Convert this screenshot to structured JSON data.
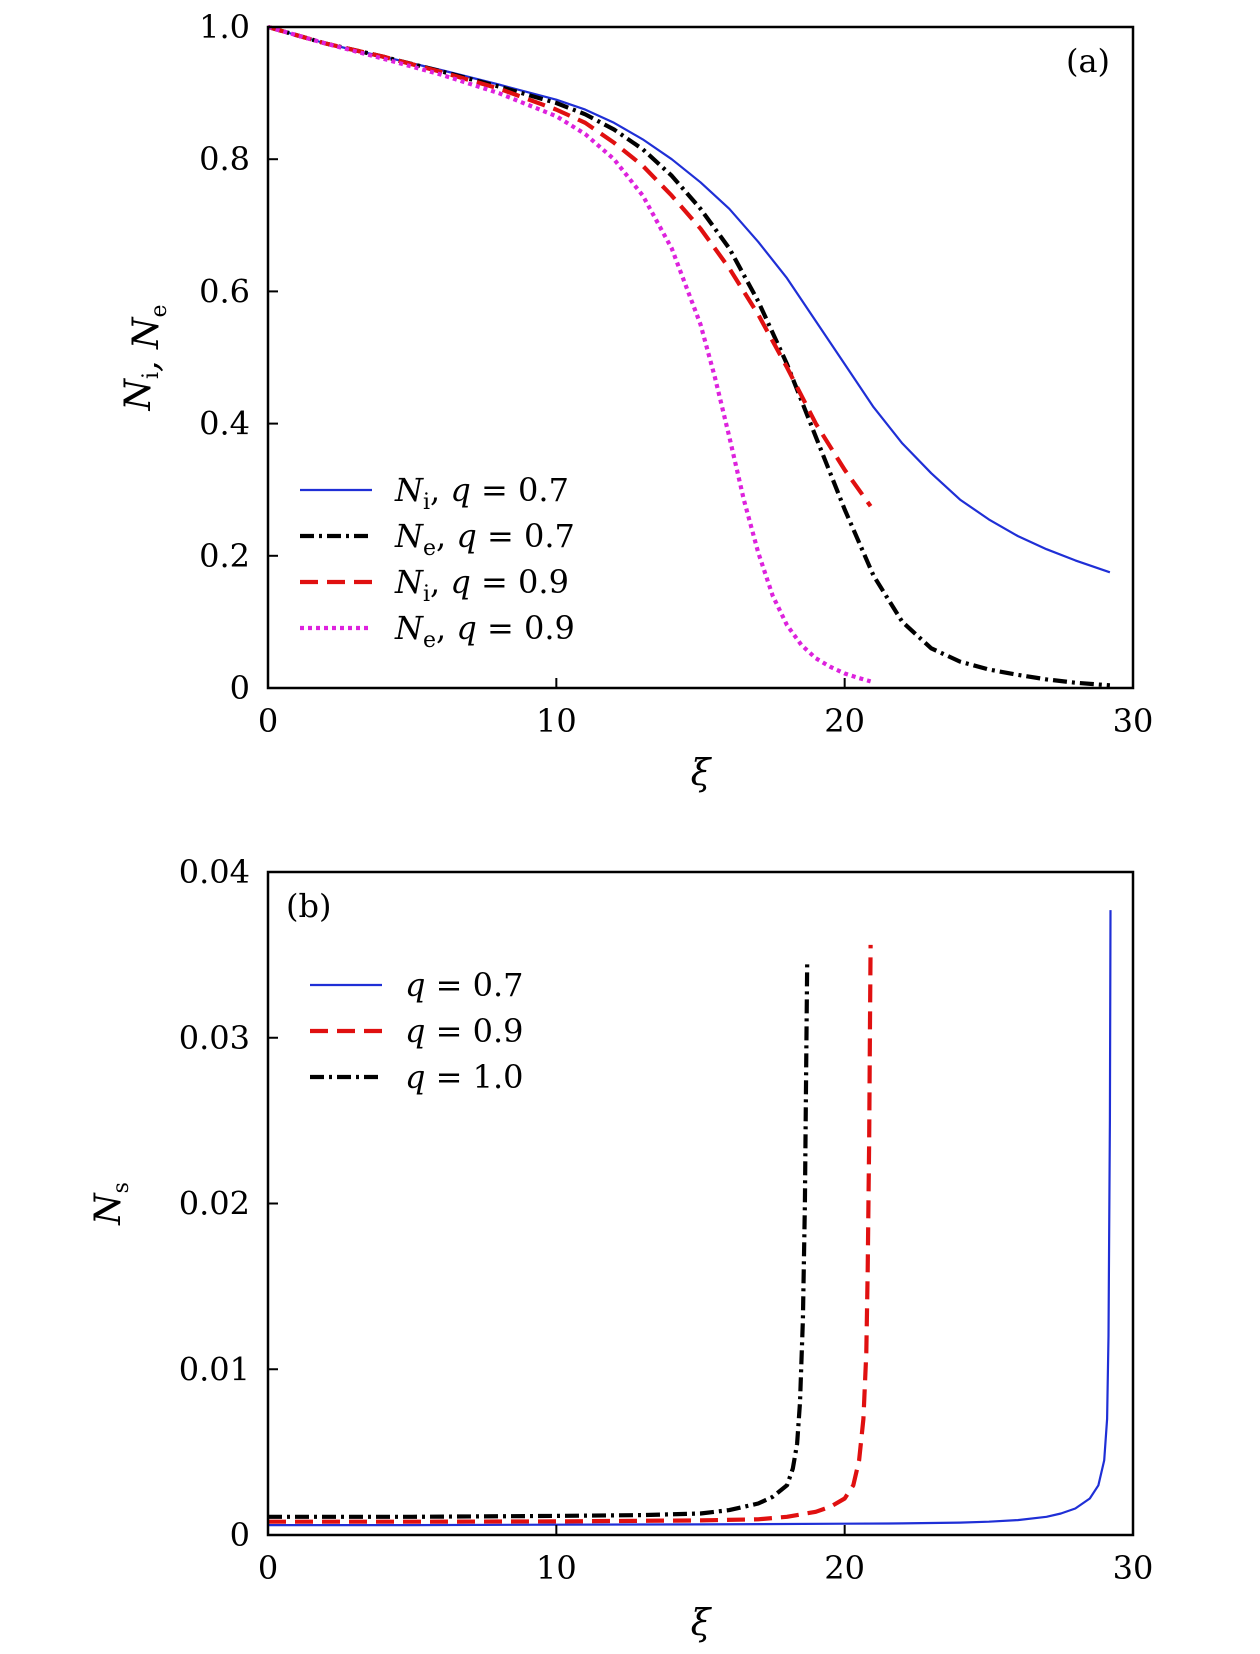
{
  "chart_data": [
    {
      "type": "line",
      "panel_label": "(a)",
      "xlabel": "ξ",
      "ylabel": "N_i, N_e",
      "xlim": [
        0,
        30
      ],
      "ylim": [
        0,
        1.0
      ],
      "xticks": [
        "0",
        "10",
        "20",
        "30"
      ],
      "yticks": [
        "0",
        "0.2",
        "0.4",
        "0.6",
        "0.8",
        "1.0"
      ],
      "legend_position": "lower-left",
      "series": [
        {
          "name": "N_i, q = 0.7",
          "legend": {
            "var": "N",
            "sub": "i",
            "rest": ", q = 0.7"
          },
          "color": "#1f2fd6",
          "style": "solid",
          "x": [
            0,
            2,
            4,
            6,
            8,
            10,
            11,
            12,
            13,
            14,
            15,
            16,
            17,
            18,
            19,
            20,
            21,
            22,
            23,
            24,
            25,
            26,
            27,
            28,
            29.2
          ],
          "y": [
            1.0,
            0.975,
            0.955,
            0.935,
            0.913,
            0.89,
            0.875,
            0.855,
            0.83,
            0.8,
            0.765,
            0.725,
            0.675,
            0.62,
            0.555,
            0.49,
            0.425,
            0.37,
            0.325,
            0.285,
            0.255,
            0.23,
            0.21,
            0.193,
            0.175
          ]
        },
        {
          "name": "N_e, q = 0.7",
          "legend": {
            "var": "N",
            "sub": "e",
            "rest": ", q = 0.7"
          },
          "color": "#000000",
          "style": "dashdot",
          "x": [
            0,
            2,
            4,
            6,
            8,
            10,
            11,
            12,
            13,
            14,
            15,
            16,
            17,
            18,
            19,
            20,
            21,
            22,
            23,
            24,
            25,
            26,
            27,
            28,
            29.2
          ],
          "y": [
            1.0,
            0.975,
            0.955,
            0.933,
            0.91,
            0.885,
            0.868,
            0.845,
            0.815,
            0.775,
            0.725,
            0.665,
            0.585,
            0.49,
            0.38,
            0.27,
            0.17,
            0.1,
            0.06,
            0.04,
            0.028,
            0.02,
            0.013,
            0.008,
            0.004
          ]
        },
        {
          "name": "N_i, q = 0.9",
          "legend": {
            "var": "N",
            "sub": "i",
            "rest": ", q = 0.9"
          },
          "color": "#e01010",
          "style": "dashed",
          "x": [
            0,
            2,
            4,
            6,
            8,
            10,
            11,
            12,
            13,
            14,
            15,
            16,
            17,
            18,
            19,
            20,
            20.9
          ],
          "y": [
            1.0,
            0.975,
            0.955,
            0.932,
            0.907,
            0.875,
            0.855,
            0.825,
            0.79,
            0.745,
            0.695,
            0.635,
            0.565,
            0.485,
            0.4,
            0.33,
            0.275
          ]
        },
        {
          "name": "N_e, q = 0.9",
          "legend": {
            "var": "N",
            "sub": "e",
            "rest": ", q = 0.9"
          },
          "color": "#dd22dd",
          "style": "dotted",
          "x": [
            0,
            2,
            4,
            6,
            8,
            10,
            11,
            12,
            13,
            14,
            15,
            15.5,
            16,
            16.5,
            17,
            17.5,
            18,
            18.5,
            19,
            19.5,
            20,
            20.5,
            20.9
          ],
          "y": [
            1.0,
            0.975,
            0.952,
            0.928,
            0.9,
            0.865,
            0.838,
            0.8,
            0.745,
            0.665,
            0.55,
            0.47,
            0.38,
            0.285,
            0.205,
            0.14,
            0.095,
            0.065,
            0.045,
            0.032,
            0.022,
            0.015,
            0.01
          ]
        }
      ]
    },
    {
      "type": "line",
      "panel_label": "(b)",
      "xlabel": "ξ",
      "ylabel": "N_s",
      "xlim": [
        0,
        30
      ],
      "ylim": [
        0,
        0.04
      ],
      "xticks": [
        "0",
        "10",
        "20",
        "30"
      ],
      "yticks": [
        "0",
        "0.01",
        "0.02",
        "0.03",
        "0.04"
      ],
      "legend_position": "top-left",
      "series": [
        {
          "name": "q = 0.7",
          "legend": {
            "rest": "q = 0.7"
          },
          "color": "#1f2fd6",
          "style": "solid",
          "x": [
            0,
            5,
            10,
            15,
            20,
            22,
            24,
            25,
            26,
            27,
            27.5,
            28,
            28.5,
            28.8,
            29.0,
            29.1,
            29.15,
            29.2,
            29.22
          ],
          "y": [
            0.0006,
            0.0006,
            0.00062,
            0.00064,
            0.00068,
            0.0007,
            0.00075,
            0.0008,
            0.0009,
            0.0011,
            0.0013,
            0.0016,
            0.0022,
            0.003,
            0.0045,
            0.007,
            0.012,
            0.025,
            0.0377
          ]
        },
        {
          "name": "q = 0.9",
          "legend": {
            "rest": "q = 0.9"
          },
          "color": "#e01010",
          "style": "dashed",
          "x": [
            0,
            5,
            10,
            15,
            17,
            18,
            19,
            19.5,
            20,
            20.3,
            20.5,
            20.65,
            20.75,
            20.8,
            20.85,
            20.88,
            20.9
          ],
          "y": [
            0.0008,
            0.0008,
            0.00082,
            0.00088,
            0.00095,
            0.0011,
            0.0014,
            0.0017,
            0.0022,
            0.003,
            0.0045,
            0.007,
            0.011,
            0.016,
            0.024,
            0.031,
            0.0356
          ]
        },
        {
          "name": "q = 1.0",
          "legend": {
            "rest": "q = 1.0"
          },
          "color": "#000000",
          "style": "dashdot",
          "x": [
            0,
            5,
            10,
            13,
            15,
            16,
            17,
            17.5,
            18,
            18.2,
            18.35,
            18.45,
            18.55,
            18.62,
            18.67,
            18.7
          ],
          "y": [
            0.0011,
            0.0011,
            0.00115,
            0.0012,
            0.0013,
            0.0015,
            0.0019,
            0.0023,
            0.003,
            0.004,
            0.0055,
            0.008,
            0.013,
            0.02,
            0.029,
            0.0346
          ]
        }
      ]
    }
  ]
}
